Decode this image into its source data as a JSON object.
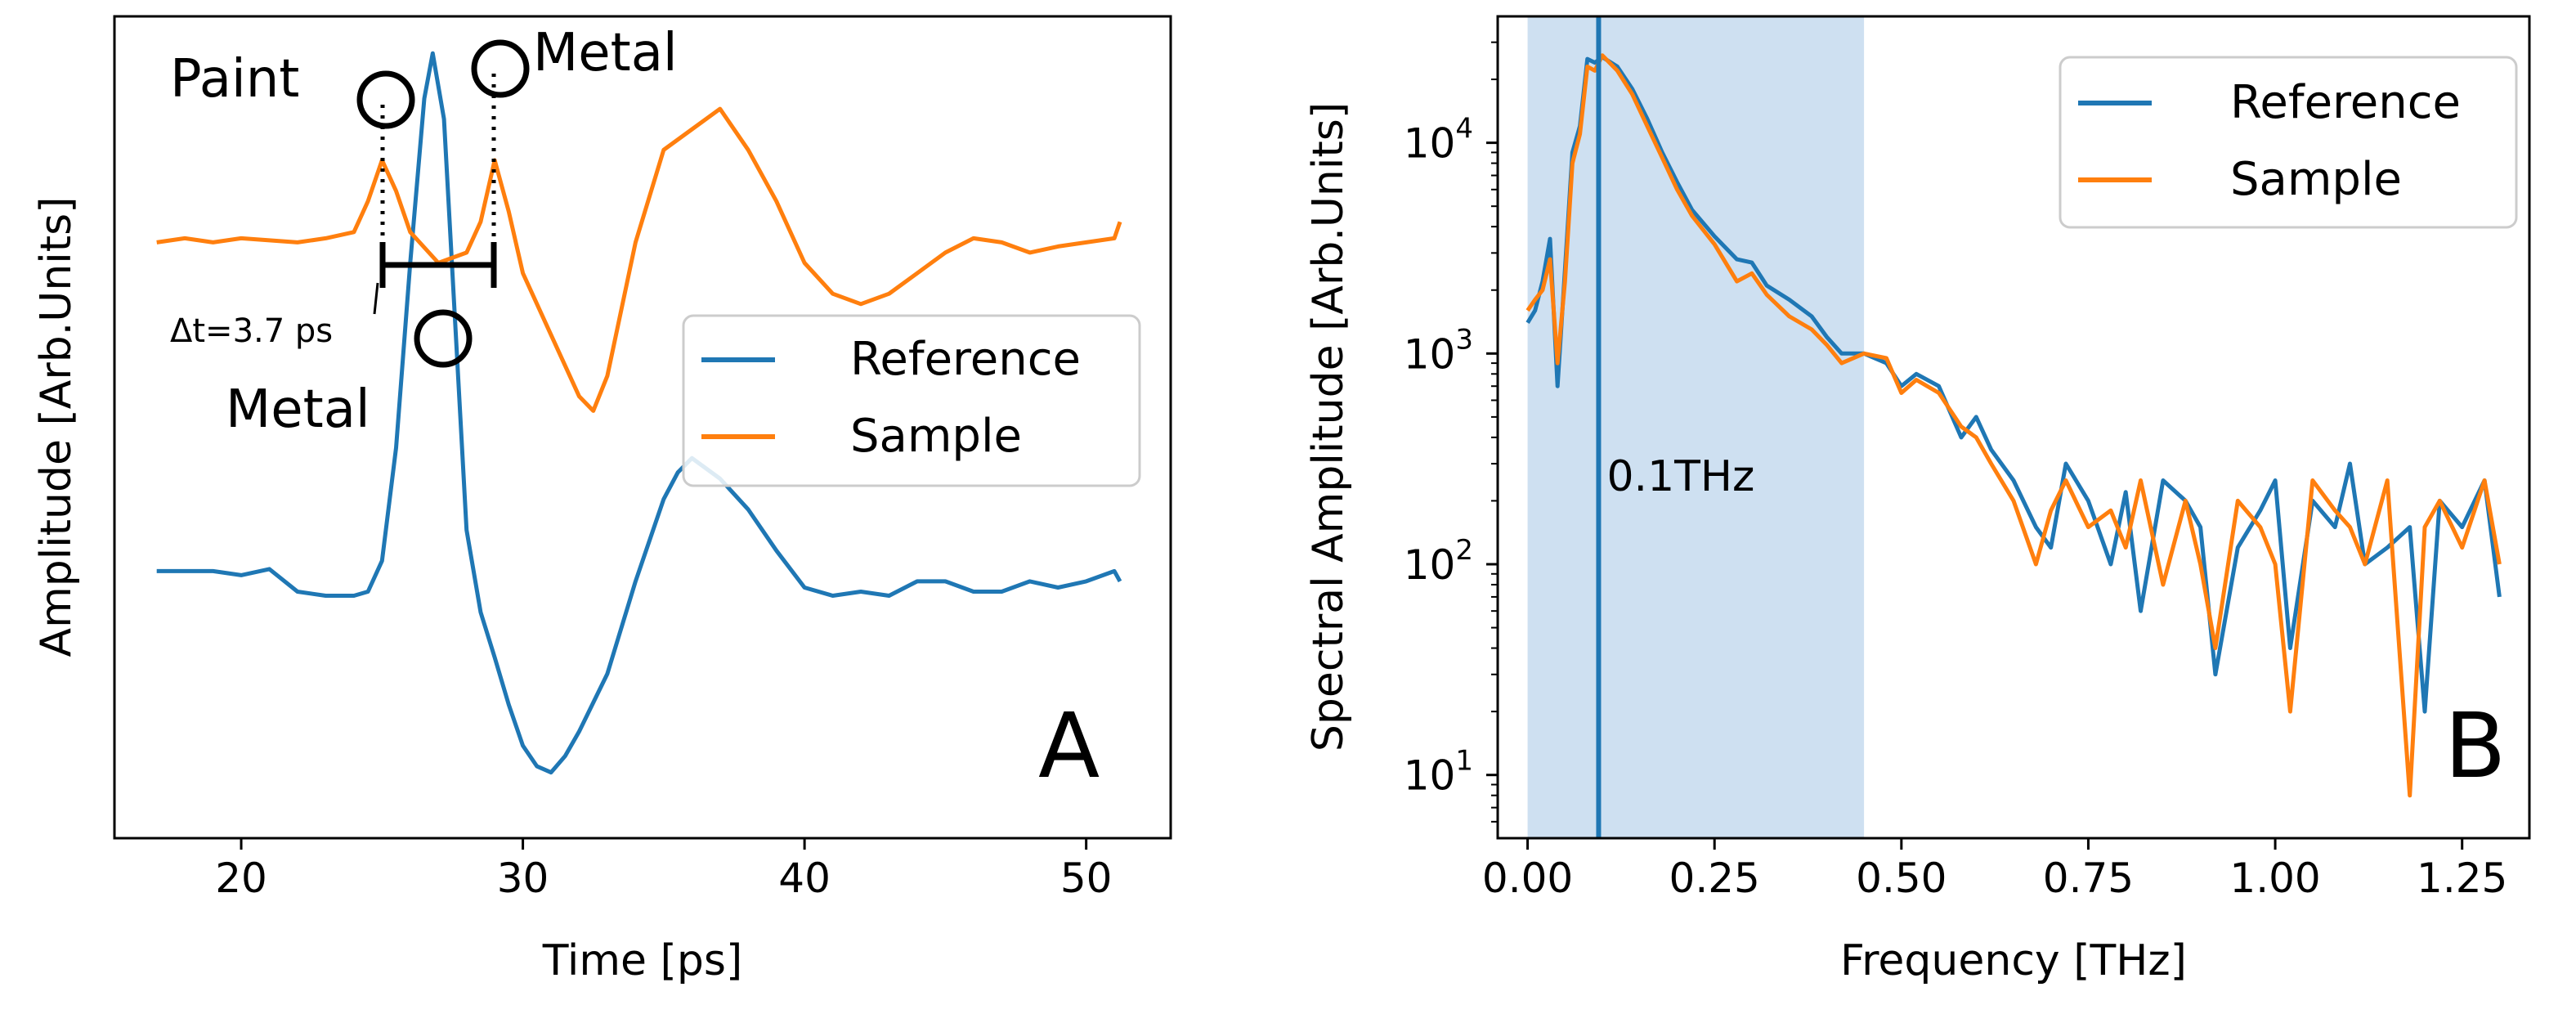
{
  "chart_data": [
    {
      "panel": "A",
      "type": "line",
      "xlabel": "Time [ps]",
      "ylabel": "Amplitude [Arb.Units]",
      "xlim": [
        15.5,
        53
      ],
      "ylim": [
        -1.3,
        2.7
      ],
      "xticks": [
        20,
        30,
        40,
        50
      ],
      "yticks": [],
      "grid": false,
      "legend": {
        "placement": "center-right",
        "entries": [
          "Reference",
          "Sample"
        ]
      },
      "series": [
        {
          "name": "Reference",
          "color": "#1f77b4",
          "x": [
            17,
            18,
            19,
            20,
            21,
            22,
            23,
            24,
            24.5,
            25,
            25.5,
            26,
            26.5,
            26.8,
            27.2,
            27.6,
            28,
            28.5,
            29,
            29.5,
            30,
            30.5,
            31,
            31.5,
            32,
            33,
            34,
            35,
            35.5,
            36,
            37,
            38,
            39,
            40,
            41,
            42,
            43,
            44,
            45,
            46,
            47,
            48,
            49,
            50,
            51,
            51.2
          ],
          "values": [
            0,
            0,
            0,
            -0.02,
            0.01,
            -0.1,
            -0.12,
            -0.12,
            -0.1,
            0.05,
            0.6,
            1.5,
            2.3,
            2.52,
            2.2,
            1.2,
            0.2,
            -0.2,
            -0.42,
            -0.65,
            -0.85,
            -0.95,
            -0.98,
            -0.9,
            -0.78,
            -0.5,
            -0.05,
            0.35,
            0.48,
            0.55,
            0.45,
            0.3,
            0.1,
            -0.08,
            -0.12,
            -0.1,
            -0.12,
            -0.05,
            -0.05,
            -0.1,
            -0.1,
            -0.05,
            -0.08,
            -0.05,
            0.0,
            -0.05
          ]
        },
        {
          "name": "Sample",
          "color": "#ff7f0e",
          "x": [
            17,
            18,
            19,
            20,
            21,
            22,
            23,
            24,
            24.5,
            25,
            25.5,
            26,
            27,
            28,
            28.5,
            29,
            29.5,
            30,
            31,
            32,
            32.5,
            33,
            34,
            35,
            36,
            37,
            38,
            39,
            40,
            41,
            42,
            43,
            44,
            45,
            46,
            47,
            48,
            49,
            50,
            51,
            51.2
          ],
          "values": [
            1.6,
            1.62,
            1.6,
            1.62,
            1.61,
            1.6,
            1.62,
            1.65,
            1.8,
            2.0,
            1.85,
            1.65,
            1.5,
            1.55,
            1.7,
            2.0,
            1.75,
            1.45,
            1.15,
            0.85,
            0.78,
            0.95,
            1.6,
            2.05,
            2.15,
            2.25,
            2.05,
            1.8,
            1.5,
            1.35,
            1.3,
            1.35,
            1.45,
            1.55,
            1.62,
            1.6,
            1.55,
            1.58,
            1.6,
            1.62,
            1.7
          ]
        }
      ],
      "annotations": [
        {
          "text": "Paint",
          "target": "first sample peak"
        },
        {
          "text": "Metal",
          "target": "second sample peak"
        },
        {
          "text": "Metal",
          "target": "reference peak"
        },
        {
          "text": "Δt=3.7 ps",
          "from_x": 25.0,
          "to_x": 29.0
        }
      ],
      "panel_label": "A"
    },
    {
      "panel": "B",
      "type": "line",
      "xlabel": "Frequency [THz]",
      "ylabel": "Spectral Amplitude [Arb.Units]",
      "yscale": "log",
      "xlim": [
        -0.04,
        1.34
      ],
      "ylim_log10": [
        0.7,
        4.6
      ],
      "xticks": [
        "0.00",
        "0.25",
        "0.50",
        "0.75",
        "1.00",
        "1.25"
      ],
      "ytick_exponents": [
        1,
        2,
        3,
        4
      ],
      "ytick_base": "10",
      "grid": false,
      "legend": {
        "placement": "top-right",
        "entries": [
          "Reference",
          "Sample"
        ]
      },
      "shaded_region": {
        "x0": 0.0,
        "x1": 0.45,
        "color": "#c6dbef"
      },
      "vline": {
        "x": 0.095,
        "label": "0.1THz",
        "color": "#1f77b4"
      },
      "series": [
        {
          "name": "Reference",
          "color": "#1f77b4",
          "x": [
            0.0,
            0.01,
            0.02,
            0.03,
            0.04,
            0.05,
            0.06,
            0.07,
            0.08,
            0.09,
            0.1,
            0.12,
            0.14,
            0.16,
            0.18,
            0.2,
            0.22,
            0.25,
            0.28,
            0.3,
            0.32,
            0.35,
            0.38,
            0.4,
            0.42,
            0.45,
            0.48,
            0.5,
            0.52,
            0.55,
            0.58,
            0.6,
            0.62,
            0.65,
            0.68,
            0.7,
            0.72,
            0.75,
            0.78,
            0.8,
            0.82,
            0.85,
            0.88,
            0.9,
            0.92,
            0.95,
            0.98,
            1.0,
            1.02,
            1.05,
            1.08,
            1.1,
            1.12,
            1.15,
            1.18,
            1.2,
            1.22,
            1.25,
            1.28,
            1.3
          ],
          "values": [
            1400,
            1600,
            2200,
            3500,
            700,
            2500,
            9000,
            12000,
            25000,
            24000,
            25500,
            23000,
            18000,
            13000,
            9000,
            6500,
            4800,
            3600,
            2800,
            2700,
            2100,
            1800,
            1500,
            1200,
            1000,
            1000,
            900,
            700,
            800,
            700,
            400,
            500,
            350,
            250,
            150,
            120,
            300,
            200,
            100,
            220,
            60,
            250,
            200,
            150,
            30,
            120,
            180,
            250,
            40,
            200,
            150,
            300,
            100,
            120,
            150,
            20,
            200,
            150,
            250,
            70
          ]
        },
        {
          "name": "Sample",
          "color": "#ff7f0e",
          "x": [
            0.0,
            0.01,
            0.02,
            0.03,
            0.04,
            0.05,
            0.06,
            0.07,
            0.08,
            0.09,
            0.1,
            0.12,
            0.14,
            0.16,
            0.18,
            0.2,
            0.22,
            0.25,
            0.28,
            0.3,
            0.32,
            0.35,
            0.38,
            0.4,
            0.42,
            0.45,
            0.48,
            0.5,
            0.52,
            0.55,
            0.58,
            0.6,
            0.62,
            0.65,
            0.68,
            0.7,
            0.72,
            0.75,
            0.78,
            0.8,
            0.82,
            0.85,
            0.88,
            0.9,
            0.92,
            0.95,
            0.98,
            1.0,
            1.02,
            1.05,
            1.08,
            1.1,
            1.12,
            1.15,
            1.18,
            1.2,
            1.22,
            1.25,
            1.28,
            1.3
          ],
          "values": [
            1600,
            1800,
            2000,
            2800,
            900,
            2200,
            8000,
            11000,
            23000,
            22000,
            26000,
            22000,
            17000,
            12000,
            8500,
            6000,
            4500,
            3300,
            2200,
            2400,
            1900,
            1500,
            1300,
            1100,
            900,
            1000,
            950,
            650,
            750,
            650,
            450,
            400,
            300,
            200,
            100,
            180,
            250,
            150,
            180,
            120,
            250,
            80,
            200,
            100,
            40,
            200,
            150,
            100,
            20,
            250,
            180,
            150,
            100,
            250,
            8,
            150,
            200,
            120,
            250,
            100
          ]
        }
      ],
      "panel_label": "B"
    }
  ]
}
